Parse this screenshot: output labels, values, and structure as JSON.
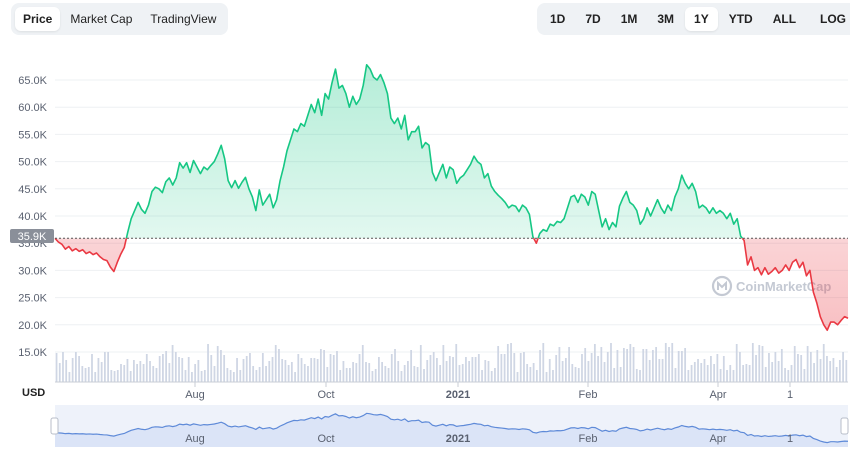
{
  "view_tabs": [
    {
      "label": "Price",
      "active": true
    },
    {
      "label": "Market Cap",
      "active": false
    },
    {
      "label": "TradingView",
      "active": false
    }
  ],
  "range_tabs": [
    {
      "label": "1D",
      "active": false
    },
    {
      "label": "7D",
      "active": false
    },
    {
      "label": "1M",
      "active": false
    },
    {
      "label": "3M",
      "active": false
    },
    {
      "label": "1Y",
      "active": true
    },
    {
      "label": "YTD",
      "active": false
    },
    {
      "label": "ALL",
      "active": false
    }
  ],
  "calendar_icon": "calendar-icon",
  "log_label": "LOG",
  "currency_label": "USD",
  "watermark": "CoinMarketCap",
  "current_price_label": "35.9K",
  "colors": {
    "up": "#16c784",
    "down": "#ea3943",
    "volume": "#cfd6e4",
    "navigator": "#5e8ad8"
  },
  "chart_data": {
    "type": "area",
    "y_ticks": [
      "15.0K",
      "20.0K",
      "25.0K",
      "30.0K",
      "35.0K",
      "40.0K",
      "45.0K",
      "50.0K",
      "55.0K",
      "60.0K",
      "65.0K"
    ],
    "x_ticks": [
      "Aug",
      "Oct",
      "2021",
      "Feb",
      "Apr",
      "1"
    ],
    "ylim": [
      10000,
      70000
    ],
    "reference_price": 35900,
    "grid": true,
    "series": [
      {
        "values": [
          35900,
          35200,
          34800,
          33900,
          34400,
          33600,
          34000,
          33500,
          33800,
          33100,
          33400,
          32900,
          33200,
          32500,
          32000,
          31800,
          30600,
          29800,
          31500,
          33000,
          34200,
          37000,
          39500,
          41000,
          42500,
          41200,
          40500,
          42000,
          44500,
          45300,
          45000,
          44300,
          46300,
          47000,
          45700,
          47000,
          49800,
          48800,
          49800,
          48000,
          50200,
          49000,
          47800,
          49000,
          48500,
          49300,
          50000,
          51400,
          53000,
          50500,
          46500,
          45200,
          46500,
          45100,
          46200,
          47100,
          45000,
          43500,
          41000,
          44800,
          42000,
          43000,
          44000,
          41500,
          43000,
          46500,
          49000,
          52000,
          54000,
          56000,
          55500,
          57000,
          56500,
          58500,
          60500,
          59000,
          61500,
          58500,
          62500,
          61500,
          64500,
          67000,
          63500,
          64000,
          62500,
          60000,
          62000,
          60500,
          61500,
          64000,
          67800,
          67000,
          65500,
          65000,
          66000,
          64500,
          62500,
          58000,
          57000,
          58000,
          56000,
          58500,
          54000,
          55500,
          55500,
          56500,
          52500,
          53500,
          53000,
          48000,
          46500,
          48000,
          49500,
          47000,
          49000,
          48500,
          46000,
          47000,
          47500,
          48500,
          49500,
          51000,
          50000,
          49500,
          47000,
          47800,
          45500,
          44500,
          43800,
          43200,
          42500,
          41500,
          42000,
          41800,
          40800,
          42000,
          41500,
          40300,
          36200,
          35000,
          36800,
          37500,
          37200,
          38500,
          38200,
          39000,
          38800,
          39500,
          41500,
          43500,
          43800,
          42500,
          44000,
          43500,
          42000,
          44500,
          44000,
          41000,
          38000,
          39500,
          37500,
          38800,
          38000,
          41800,
          43300,
          44500,
          42500,
          42000,
          41000,
          38500,
          39500,
          41500,
          40000,
          41500,
          43000,
          41500,
          40500,
          42000,
          41000,
          43500,
          45000,
          47500,
          46000,
          45000,
          46000,
          44500,
          41500,
          42000,
          41500,
          40500,
          41500,
          40500,
          41000,
          40500,
          39500,
          40500,
          38500,
          39500,
          36300,
          35500,
          31000,
          32500,
          30000,
          30500,
          29200,
          30500,
          29300,
          29800,
          30500,
          29500,
          30000,
          31000,
          30000,
          31500,
          32000,
          30500,
          31500,
          29000,
          30000,
          26000,
          24000,
          21500,
          20000,
          19000,
          20500,
          20500,
          20000,
          20800,
          21500,
          21200
        ]
      }
    ],
    "volume": [
      29,
      19,
      30,
      22,
      10,
      24,
      30,
      26,
      16,
      14,
      15,
      28,
      10,
      24,
      20,
      30,
      30,
      12,
      11,
      12,
      18,
      17,
      23,
      11,
      22,
      18,
      21,
      18,
      28,
      21,
      16,
      14,
      26,
      28,
      31,
      19,
      37,
      30,
      25,
      24,
      12,
      25,
      10,
      18,
      22,
      11,
      12,
      38,
      27,
      16,
      36,
      32,
      27,
      14,
      12,
      10,
      24,
      12,
      23,
      26,
      29,
      16,
      12,
      15,
      29,
      16,
      21,
      25,
      37,
      33,
      23,
      22,
      17,
      20,
      10,
      28,
      24,
      18,
      16,
      24,
      24,
      23,
      33,
      32,
      15,
      28,
      27,
      31,
      12,
      21,
      14,
      14,
      20,
      19,
      28,
      37,
      20,
      19,
      11,
      13,
      25,
      20,
      16,
      14,
      28,
      33,
      21,
      11,
      17,
      21,
      32,
      16,
      15,
      37,
      13,
      22,
      27,
      30,
      24,
      17,
      37,
      21,
      26,
      25,
      38,
      17,
      18,
      25,
      21,
      25,
      25,
      28,
      12,
      22,
      21,
      11,
      14,
      36,
      28,
      28,
      38,
      39,
      29,
      10,
      29,
      30,
      18,
      15,
      19,
      12,
      32,
      39,
      10,
      23,
      12,
      27,
      35,
      21,
      24,
      35,
      18,
      15,
      14,
      28,
      34,
      21,
      29,
      38,
      26,
      35,
      20,
      30,
      39,
      14,
      32,
      15,
      34,
      33,
      38,
      35,
      13,
      12,
      33,
      33,
      22,
      32,
      35,
      23,
      23,
      39,
      35,
      39,
      14,
      31,
      31,
      34,
      12,
      17,
      20,
      23,
      19,
      23,
      17,
      26,
      18,
      28,
      13,
      26,
      12,
      17,
      12,
      38,
      30,
      17,
      18,
      17,
      39,
      27,
      37,
      36,
      15,
      29,
      20,
      30,
      21,
      33,
      14,
      12,
      17,
      36,
      28,
      27,
      13,
      36,
      30,
      19,
      32,
      23,
      38,
      26,
      21,
      24,
      15,
      22,
      30,
      22
    ]
  }
}
